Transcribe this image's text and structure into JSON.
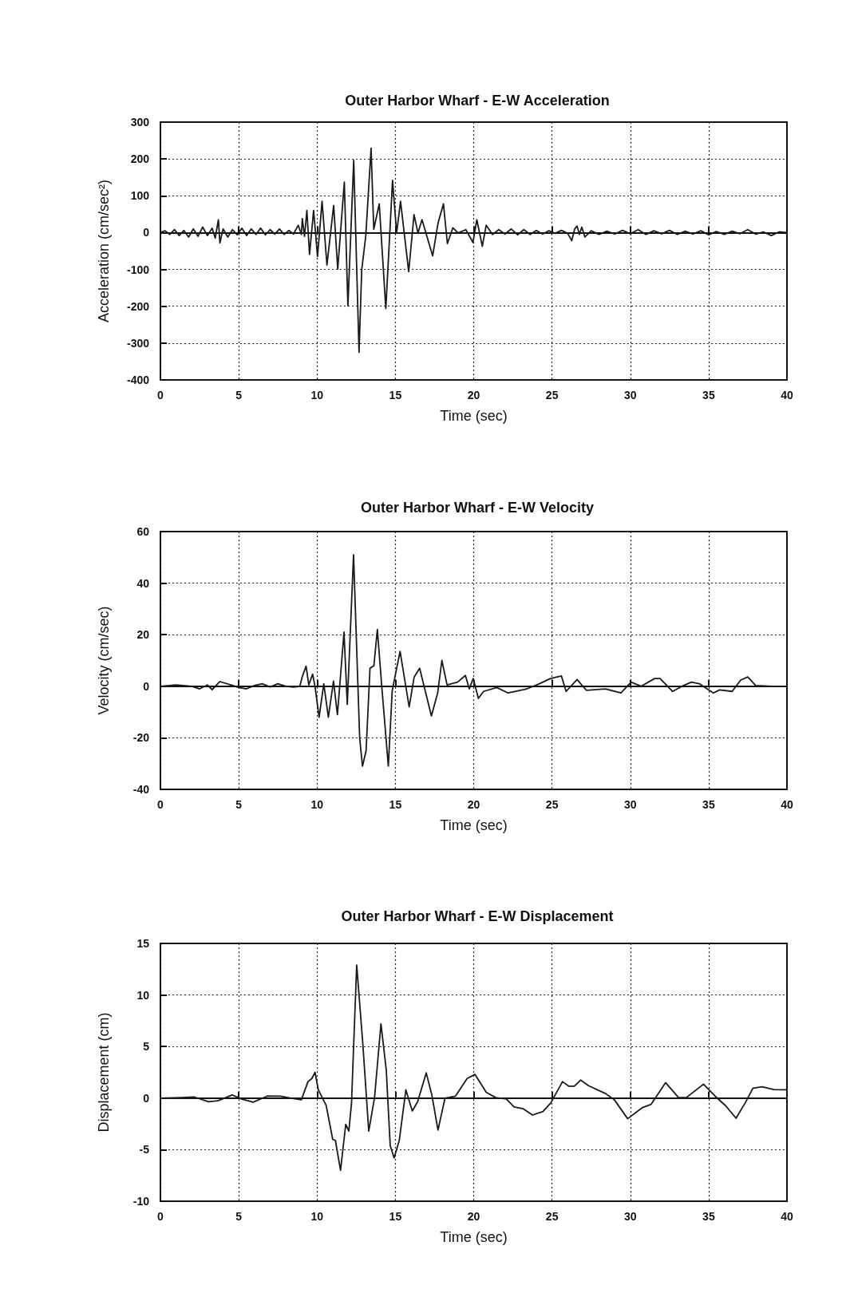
{
  "chart_data": [
    {
      "type": "line",
      "title": "Outer Harbor Wharf - E-W Acceleration",
      "xlabel": "Time (sec)",
      "ylabel": "Acceleration (cm/sec²)",
      "xlim": [
        0,
        40
      ],
      "xticks": [
        0,
        5,
        10,
        15,
        20,
        25,
        30,
        35,
        40
      ],
      "ylim": [
        -400,
        300
      ],
      "yticks": [
        -400,
        -300,
        -200,
        -100,
        0,
        100,
        200,
        300
      ],
      "grid": true,
      "marker": "none",
      "line_style": "solid",
      "series": [
        {
          "color": "#1a1a1a",
          "x": [
            0,
            0.3,
            0.6,
            0.9,
            1.2,
            1.5,
            1.8,
            2.1,
            2.4,
            2.7,
            3.0,
            3.3,
            3.5,
            3.7,
            3.8,
            4.0,
            4.3,
            4.6,
            4.9,
            5.2,
            5.5,
            5.8,
            6.1,
            6.4,
            6.7,
            7.0,
            7.3,
            7.6,
            7.9,
            8.2,
            8.5,
            8.8,
            9.0,
            9.06,
            9.2,
            9.35,
            9.52,
            9.78,
            10.03,
            10.32,
            10.63,
            11.06,
            11.32,
            11.74,
            11.97,
            12.34,
            12.68,
            12.85,
            13.11,
            13.45,
            13.62,
            13.97,
            14.39,
            14.82,
            15.08,
            15.33,
            15.85,
            16.19,
            16.44,
            16.7,
            17.38,
            17.73,
            18.07,
            18.32,
            18.67,
            19.0,
            19.5,
            19.95,
            20.2,
            20.55,
            20.8,
            21.2,
            21.6,
            22.0,
            22.4,
            22.8,
            23.2,
            23.6,
            24.0,
            24.4,
            24.8,
            25.2,
            25.6,
            26.0,
            26.26,
            26.45,
            26.6,
            26.75,
            26.9,
            27.1,
            27.5,
            28.0,
            28.5,
            29.0,
            29.5,
            30.0,
            30.5,
            31.0,
            31.5,
            32.0,
            32.5,
            33.0,
            33.5,
            34.0,
            34.5,
            35.0,
            35.5,
            36.0,
            36.5,
            37.0,
            37.5,
            38.0,
            38.5,
            39.0,
            39.5,
            40
          ],
          "values": [
            0,
            5,
            -5,
            8,
            -8,
            6,
            -12,
            10,
            -10,
            15,
            -8,
            12,
            -15,
            35,
            -28,
            10,
            -12,
            8,
            -6,
            12,
            -8,
            10,
            -5,
            12,
            -6,
            8,
            -4,
            10,
            -5,
            6,
            -4,
            20,
            -5,
            38,
            -10,
            60,
            -59,
            60,
            -65,
            85,
            -88,
            74,
            -99,
            137,
            -199,
            196,
            -325,
            -102,
            -9,
            229,
            9,
            78,
            -206,
            142,
            -1,
            85,
            -106,
            49,
            -1,
            35,
            -63,
            27,
            78,
            -30,
            13,
            -1,
            8,
            -27,
            35,
            -37,
            20,
            -5,
            8,
            -4,
            10,
            -6,
            8,
            -5,
            6,
            -4,
            5,
            -2,
            6,
            -2,
            -22,
            10,
            18,
            -5,
            15,
            -12,
            5,
            -5,
            4,
            -4,
            6,
            -3,
            8,
            -5,
            5,
            -3,
            6,
            -5,
            4,
            -4,
            5,
            -6,
            3,
            -5,
            4,
            -3,
            8,
            -4,
            2,
            -8,
            2,
            0
          ]
        }
      ]
    },
    {
      "type": "line",
      "title": "Outer Harbor Wharf - E-W Velocity",
      "xlabel": "Time (sec)",
      "ylabel": "Velocity (cm/sec)",
      "xlim": [
        0,
        40
      ],
      "xticks": [
        0,
        5,
        10,
        15,
        20,
        25,
        30,
        35,
        40
      ],
      "ylim": [
        -40,
        60
      ],
      "yticks": [
        -40,
        -20,
        0,
        20,
        40,
        60
      ],
      "grid": true,
      "marker": "none",
      "line_style": "solid",
      "series": [
        {
          "color": "#1a1a1a",
          "x": [
            0,
            1,
            2,
            2.5,
            3,
            3.3,
            3.8,
            4.5,
            5,
            5.5,
            6,
            6.5,
            7,
            7.5,
            8,
            8.5,
            8.9,
            9.05,
            9.3,
            9.47,
            9.72,
            9.88,
            10.13,
            10.43,
            10.72,
            11.05,
            11.3,
            11.72,
            11.93,
            12.33,
            12.72,
            12.9,
            13.13,
            13.38,
            13.63,
            13.85,
            14.13,
            14.55,
            14.8,
            15.3,
            15.88,
            16.2,
            16.55,
            17.3,
            17.7,
            17.97,
            18.3,
            18.97,
            19.47,
            19.72,
            19.97,
            20.3,
            20.63,
            21.47,
            22.2,
            23.4,
            24.2,
            24.9,
            25.6,
            25.9,
            26.6,
            27.2,
            28.4,
            29.4,
            30.05,
            30.7,
            31.55,
            31.9,
            32.7,
            33.4,
            33.9,
            34.4,
            35.3,
            35.7,
            36.5,
            37.05,
            37.5,
            38.0,
            39.05,
            40
          ],
          "values": [
            0,
            0.5,
            0,
            -1,
            0.5,
            -1.3,
            1.8,
            0.5,
            -0.5,
            -1,
            0.3,
            1,
            -0.3,
            1,
            0,
            -0.3,
            0,
            3.6,
            7.8,
            0.5,
            4.7,
            -0.5,
            -12,
            1,
            -12,
            2,
            -11,
            21,
            -7,
            51,
            -20,
            -31,
            -25,
            7,
            8,
            22,
            0,
            -31,
            -1.6,
            13.5,
            -8,
            3.6,
            7,
            -11.5,
            -2.6,
            10,
            0.5,
            1.6,
            4.2,
            -1,
            3,
            -4.7,
            -2,
            -0.5,
            -2.6,
            -1,
            1,
            3,
            4,
            -2,
            2.6,
            -1.6,
            -1,
            -2.6,
            1.6,
            0,
            3,
            3,
            -2,
            0.3,
            1.6,
            1,
            -2.6,
            -1.4,
            -2,
            2.4,
            3.6,
            0.3,
            0,
            0
          ]
        }
      ]
    },
    {
      "type": "line",
      "title": "Outer Harbor Wharf - E-W Displacement",
      "xlabel": "Time (sec)",
      "ylabel": "Displacement (cm)",
      "xlim": [
        0,
        40
      ],
      "xticks": [
        0,
        5,
        10,
        15,
        20,
        25,
        30,
        35,
        40
      ],
      "ylim": [
        -10,
        15
      ],
      "yticks": [
        -10,
        -5,
        0,
        5,
        10,
        15
      ],
      "grid": true,
      "marker": "none",
      "line_style": "solid",
      "series": [
        {
          "color": "#1a1a1a",
          "x": [
            0,
            1.33,
            2.17,
            3.08,
            3.67,
            4.58,
            5.17,
            5.92,
            6.83,
            7.67,
            8.33,
            9.0,
            9.42,
            9.67,
            9.87,
            10.08,
            10.58,
            11.0,
            11.17,
            11.5,
            11.83,
            12.03,
            12.2,
            12.53,
            12.92,
            13.3,
            13.67,
            14.08,
            14.42,
            14.67,
            14.92,
            15.25,
            15.67,
            16.08,
            16.42,
            16.97,
            17.33,
            17.72,
            18.17,
            18.83,
            19.58,
            20.08,
            20.8,
            21.4,
            22.08,
            22.58,
            23.17,
            23.75,
            24.42,
            24.92,
            25.67,
            26.08,
            26.42,
            26.83,
            27.33,
            28.42,
            29.0,
            29.83,
            30.75,
            31.33,
            32.25,
            33.08,
            33.58,
            34.67,
            35.42,
            36.08,
            36.75,
            37.33,
            37.83,
            38.42,
            39.17,
            40
          ],
          "values": [
            0,
            0.05,
            0.1,
            -0.36,
            -0.26,
            0.31,
            -0.08,
            -0.39,
            0.2,
            0.18,
            0,
            -0.16,
            1.6,
            1.9,
            2.5,
            0.8,
            -0.7,
            -4,
            -4.1,
            -7,
            -2.55,
            -3.2,
            -0.47,
            12.9,
            5.3,
            -3.2,
            0.05,
            7.2,
            2.7,
            -4.6,
            -5.8,
            -4.1,
            0.8,
            -1.25,
            -0.34,
            2.45,
            0.3,
            -3.1,
            0,
            0.18,
            1.9,
            2.3,
            0.57,
            0.05,
            -0.08,
            -0.86,
            -1.04,
            -1.64,
            -1.3,
            -0.47,
            1.6,
            1.15,
            1.15,
            1.75,
            1.2,
            0.44,
            -0.2,
            -2.0,
            -0.94,
            -0.6,
            1.5,
            0.05,
            0.05,
            1.35,
            0.18,
            -0.73,
            -1.95,
            -0.47,
            0.96,
            1.1,
            0.83,
            0.8
          ]
        }
      ]
    }
  ]
}
